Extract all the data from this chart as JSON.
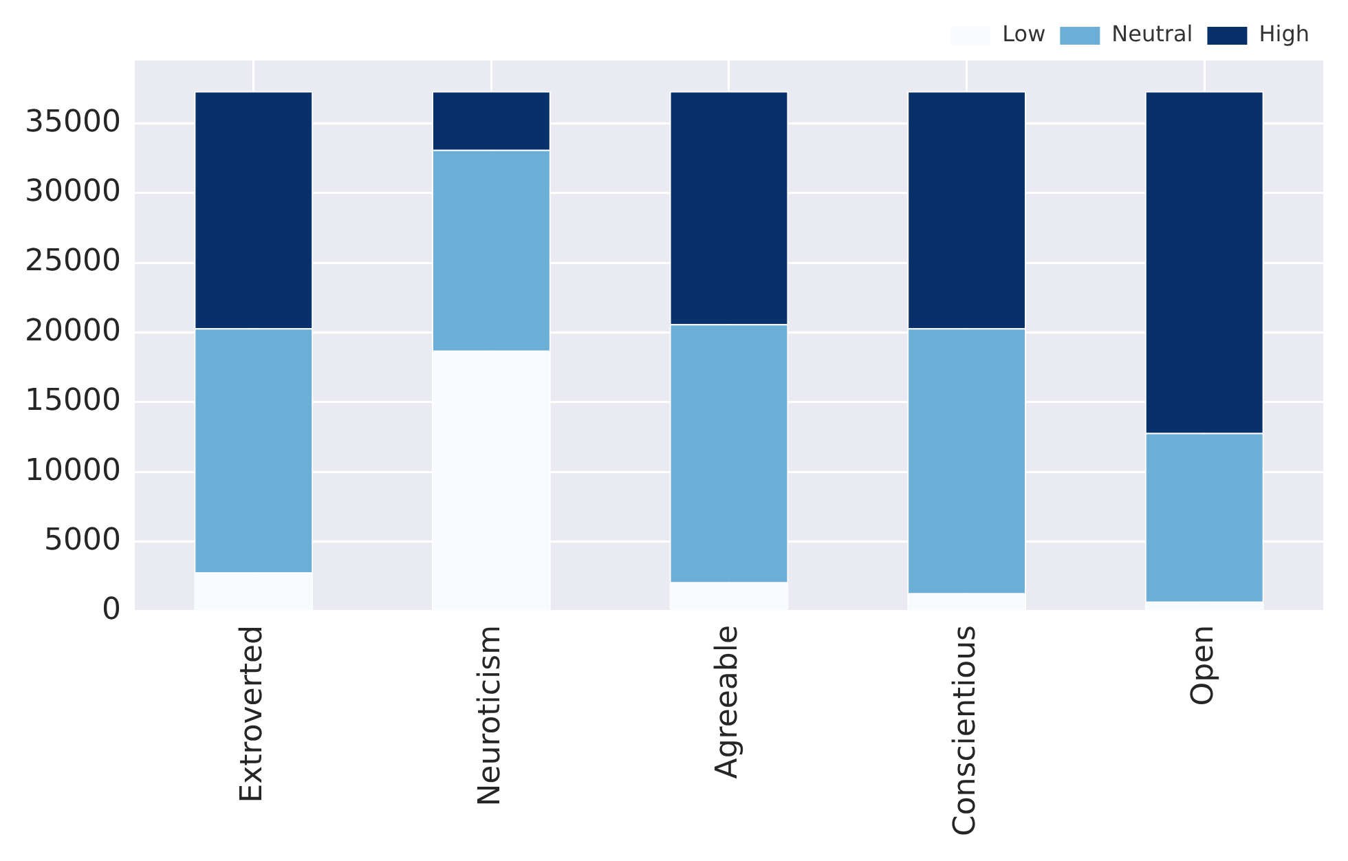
{
  "chart_data": {
    "type": "bar",
    "stacked": true,
    "categories": [
      "Extroverted",
      "Neuroticism",
      "Agreeable",
      "Conscientious",
      "Open"
    ],
    "series": [
      {
        "name": "Low",
        "color": "#f7fbff",
        "values": [
          2800,
          18700,
          2100,
          1300,
          700
        ]
      },
      {
        "name": "Neutral",
        "color": "#6baed6",
        "values": [
          17500,
          14400,
          18500,
          19000,
          12100
        ]
      },
      {
        "name": "High",
        "color": "#08306b",
        "values": [
          17000,
          4200,
          16700,
          17000,
          24500
        ]
      }
    ],
    "ylim": [
      0,
      39500
    ],
    "yticks": [
      0,
      5000,
      10000,
      15000,
      20000,
      25000,
      30000,
      35000
    ],
    "grid": true,
    "legend": "top right"
  }
}
